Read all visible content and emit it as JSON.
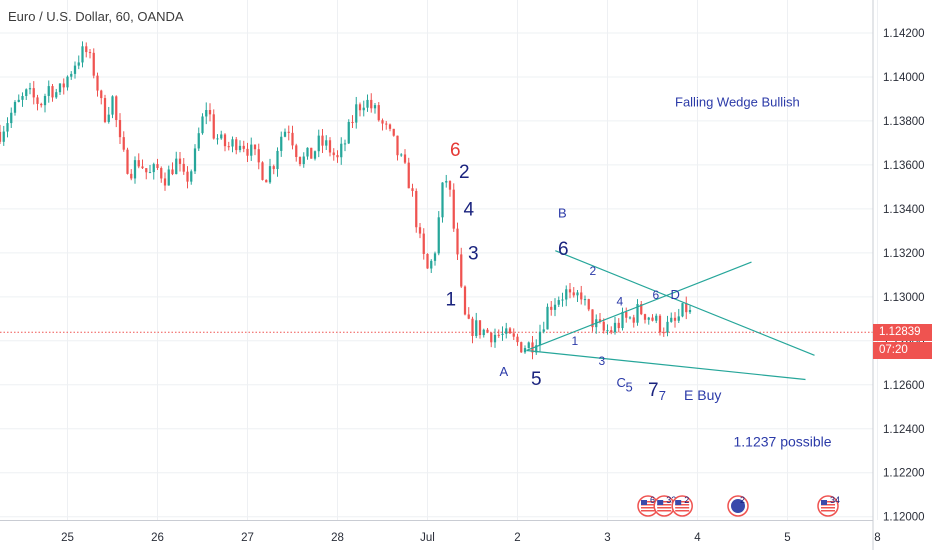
{
  "header": {
    "title": "Euro / U.S. Dollar, 60, OANDA"
  },
  "current_price": {
    "value": "1.12839",
    "countdown": "07:20",
    "color": "#ef5350"
  },
  "colors": {
    "up": "#26a69a",
    "down": "#ef5350",
    "line": "#26a69a",
    "annot": "#2b3aa8"
  },
  "chart_data": {
    "type": "candlestick",
    "title": "Euro / U.S. Dollar, 60, OANDA",
    "y_ticks": [
      "1.12000",
      "1.12200",
      "1.12400",
      "1.12600",
      "1.12800",
      "1.13000",
      "1.13200",
      "1.13400",
      "1.13600",
      "1.13800",
      "1.14000",
      "1.14200"
    ],
    "ylim": [
      1.11985,
      1.1435
    ],
    "x_ticks": [
      {
        "label": "25",
        "pos": 0
      },
      {
        "label": "26",
        "pos": 1
      },
      {
        "label": "27",
        "pos": 2
      },
      {
        "label": "28",
        "pos": 3
      },
      {
        "label": "Jul",
        "pos": 4
      },
      {
        "label": "2",
        "pos": 5
      },
      {
        "label": "3",
        "pos": 6
      },
      {
        "label": "4",
        "pos": 7
      },
      {
        "label": "5",
        "pos": 8
      },
      {
        "label": "8",
        "pos": 9
      }
    ],
    "xlim": [
      -0.75,
      8.95
    ],
    "price_path": [
      [
        -0.75,
        1.1375
      ],
      [
        -0.6,
        1.1385
      ],
      [
        -0.45,
        1.1392
      ],
      [
        -0.3,
        1.1388
      ],
      [
        -0.2,
        1.1396
      ],
      [
        -0.1,
        1.1392
      ],
      [
        0.0,
        1.14
      ],
      [
        0.1,
        1.1408
      ],
      [
        0.2,
        1.1412
      ],
      [
        0.3,
        1.1402
      ],
      [
        0.4,
        1.1382
      ],
      [
        0.5,
        1.139
      ],
      [
        0.6,
        1.1365
      ],
      [
        0.7,
        1.1358
      ],
      [
        0.8,
        1.1362
      ],
      [
        0.9,
        1.1355
      ],
      [
        1.0,
        1.1358
      ],
      [
        1.1,
        1.1354
      ],
      [
        1.2,
        1.1362
      ],
      [
        1.3,
        1.1352
      ],
      [
        1.4,
        1.136
      ],
      [
        1.45,
        1.1372
      ],
      [
        1.55,
        1.1388
      ],
      [
        1.62,
        1.1375
      ],
      [
        1.7,
        1.137
      ],
      [
        1.8,
        1.1368
      ],
      [
        1.9,
        1.1372
      ],
      [
        2.0,
        1.1368
      ],
      [
        2.1,
        1.1362
      ],
      [
        2.2,
        1.1355
      ],
      [
        2.3,
        1.1362
      ],
      [
        2.35,
        1.1372
      ],
      [
        2.45,
        1.1378
      ],
      [
        2.55,
        1.1366
      ],
      [
        2.6,
        1.1362
      ],
      [
        2.7,
        1.1364
      ],
      [
        2.8,
        1.137
      ],
      [
        2.9,
        1.1368
      ],
      [
        3.0,
        1.1362
      ],
      [
        3.1,
        1.1372
      ],
      [
        3.2,
        1.1385
      ],
      [
        3.3,
        1.139
      ],
      [
        3.4,
        1.1385
      ],
      [
        3.5,
        1.1378
      ],
      [
        3.6,
        1.1372
      ],
      [
        3.7,
        1.1362
      ],
      [
        3.8,
        1.1352
      ],
      [
        3.85,
        1.1342
      ],
      [
        3.9,
        1.1328
      ],
      [
        3.95,
        1.1318
      ],
      [
        4.0,
        1.1312
      ],
      [
        4.05,
        1.1316
      ],
      [
        4.1,
        1.1325
      ],
      [
        4.15,
        1.1345
      ],
      [
        4.2,
        1.1355
      ],
      [
        4.25,
        1.1346
      ],
      [
        4.3,
        1.1328
      ],
      [
        4.35,
        1.131
      ],
      [
        4.4,
        1.1292
      ],
      [
        4.45,
        1.1286
      ],
      [
        4.55,
        1.1286
      ],
      [
        4.65,
        1.1284
      ],
      [
        4.75,
        1.1283
      ],
      [
        4.85,
        1.1282
      ],
      [
        4.95,
        1.128
      ],
      [
        5.05,
        1.1278
      ],
      [
        5.15,
        1.1278
      ],
      [
        5.25,
        1.1285
      ],
      [
        5.35,
        1.1296
      ],
      [
        5.45,
        1.13
      ],
      [
        5.55,
        1.1302
      ],
      [
        5.62,
        1.1296
      ],
      [
        5.7,
        1.1303
      ],
      [
        5.78,
        1.1292
      ],
      [
        5.85,
        1.1288
      ],
      [
        5.95,
        1.1284
      ],
      [
        6.05,
        1.1285
      ],
      [
        6.15,
        1.1289
      ],
      [
        6.25,
        1.129
      ],
      [
        6.35,
        1.1294
      ],
      [
        6.45,
        1.1292
      ],
      [
        6.55,
        1.1288
      ],
      [
        6.65,
        1.1286
      ],
      [
        6.75,
        1.1288
      ],
      [
        6.82,
        1.1292
      ],
      [
        6.9,
        1.1296
      ],
      [
        6.95,
        1.1284
      ]
    ],
    "current_price": 1.12839,
    "trendlines": [
      {
        "from": [
          5.1,
          1.12756
        ],
        "to": [
          8.2,
          1.12624
        ]
      },
      {
        "from": [
          5.1,
          1.12756
        ],
        "to": [
          7.6,
          1.13158
        ]
      },
      {
        "from": [
          5.42,
          1.1321
        ],
        "to": [
          8.3,
          1.12734
        ]
      }
    ],
    "annotations": [
      {
        "text": "Falling Wedge Bullish",
        "x": 6.75,
        "y": 1.13865,
        "size": 13,
        "color": "#2b3aa8"
      },
      {
        "text": "6",
        "x": 4.25,
        "y": 1.1364,
        "size": 19,
        "color": "#e53935"
      },
      {
        "text": "2",
        "x": 4.35,
        "y": 1.1354,
        "size": 19,
        "color": "#1a237e"
      },
      {
        "text": "4",
        "x": 4.4,
        "y": 1.1337,
        "size": 19,
        "color": "#1a237e"
      },
      {
        "text": "3",
        "x": 4.45,
        "y": 1.1317,
        "size": 19,
        "color": "#1a237e"
      },
      {
        "text": "1",
        "x": 4.2,
        "y": 1.1296,
        "size": 19,
        "color": "#1a237e"
      },
      {
        "text": "B",
        "x": 5.45,
        "y": 1.1336,
        "size": 13,
        "color": "#2b3aa8"
      },
      {
        "text": "6",
        "x": 5.45,
        "y": 1.1319,
        "size": 19,
        "color": "#1a237e"
      },
      {
        "text": "2",
        "x": 5.8,
        "y": 1.131,
        "size": 12,
        "color": "#2b3aa8"
      },
      {
        "text": "4",
        "x": 6.1,
        "y": 1.1296,
        "size": 12,
        "color": "#2b3aa8"
      },
      {
        "text": "6",
        "x": 6.5,
        "y": 1.1299,
        "size": 12,
        "color": "#2b3aa8"
      },
      {
        "text": "D",
        "x": 6.7,
        "y": 1.1299,
        "size": 13,
        "color": "#2b3aa8"
      },
      {
        "text": "1",
        "x": 5.6,
        "y": 1.1278,
        "size": 12,
        "color": "#2b3aa8"
      },
      {
        "text": "3",
        "x": 5.9,
        "y": 1.1269,
        "size": 12,
        "color": "#2b3aa8"
      },
      {
        "text": "A",
        "x": 4.8,
        "y": 1.1264,
        "size": 13,
        "color": "#2b3aa8"
      },
      {
        "text": "5",
        "x": 5.15,
        "y": 1.126,
        "size": 19,
        "color": "#1a237e"
      },
      {
        "text": "C",
        "x": 6.1,
        "y": 1.1259,
        "size": 13,
        "color": "#2b3aa8"
      },
      {
        "text": "5",
        "x": 6.2,
        "y": 1.1257,
        "size": 13,
        "color": "#2b3aa8"
      },
      {
        "text": "7",
        "x": 6.45,
        "y": 1.1255,
        "size": 19,
        "color": "#1a237e"
      },
      {
        "text": "7",
        "x": 6.57,
        "y": 1.1253,
        "size": 13,
        "color": "#2b3aa8"
      },
      {
        "text": "E Buy",
        "x": 6.85,
        "y": 1.1253,
        "size": 14,
        "color": "#2b3aa8"
      },
      {
        "text": "1.1237 possible",
        "x": 7.4,
        "y": 1.1232,
        "size": 14,
        "color": "#2b3aa8"
      }
    ],
    "events": [
      {
        "x": 6.45,
        "label": "6",
        "kind": "us"
      },
      {
        "x": 6.63,
        "label": "32",
        "kind": "us"
      },
      {
        "x": 6.83,
        "label": "2",
        "kind": "us"
      },
      {
        "x": 7.45,
        "label": "2",
        "kind": "eu"
      },
      {
        "x": 8.45,
        "label": "34",
        "kind": "us"
      }
    ]
  }
}
